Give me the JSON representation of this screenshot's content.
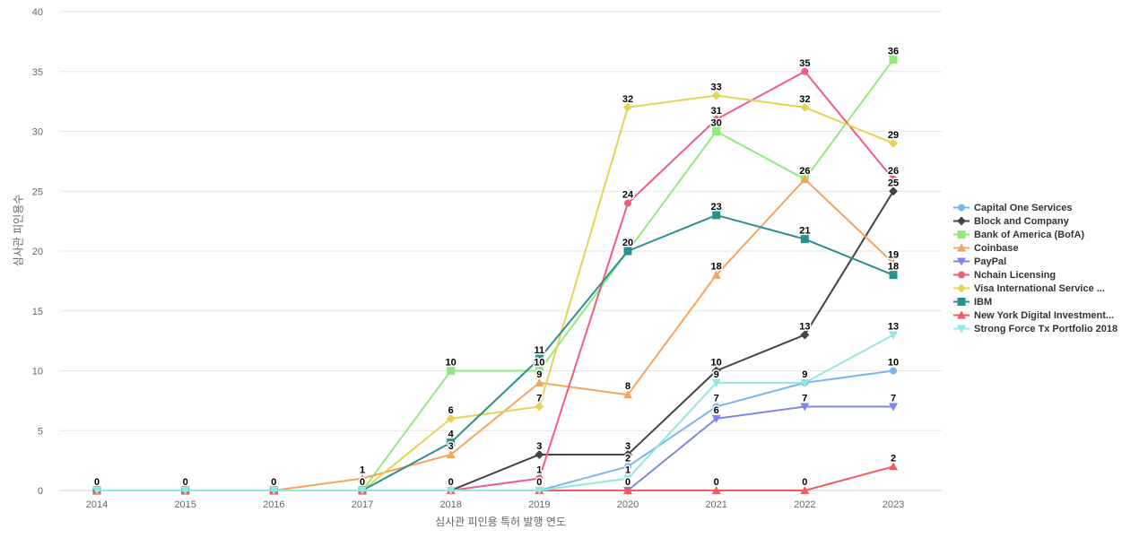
{
  "axes": {
    "y_title": "심사관 피인용수",
    "x_title": "심사관 피인용 특허 발행 연도"
  },
  "chart_data": {
    "type": "line",
    "title": "",
    "xlabel": "심사관 피인용 특허 발행 연도",
    "ylabel": "심사관 피인용수",
    "x": [
      2014,
      2015,
      2016,
      2017,
      2018,
      2019,
      2020,
      2021,
      2022,
      2023
    ],
    "ylim": [
      0,
      40
    ],
    "y_ticks": [
      0,
      5,
      10,
      15,
      20,
      25,
      30,
      35,
      40
    ],
    "grid": "horizontal",
    "legend_position": "right",
    "data_labels": true,
    "axis_line_color": "#ccd6eb",
    "grid_color": "#e6e6e6",
    "series": [
      {
        "name": "Capital One Services",
        "color": "#7cb5ec",
        "marker": "circle",
        "values": [
          0,
          0,
          0,
          0,
          0,
          0,
          2,
          7,
          9,
          10
        ]
      },
      {
        "name": "Block and Company",
        "color": "#434348",
        "marker": "diamond",
        "values": [
          0,
          0,
          0,
          0,
          0,
          3,
          3,
          10,
          13,
          25
        ]
      },
      {
        "name": "Bank of America (BofA)",
        "color": "#90ed7d",
        "marker": "square",
        "values": [
          0,
          0,
          0,
          0,
          10,
          10,
          20,
          30,
          26,
          36
        ]
      },
      {
        "name": "Coinbase",
        "color": "#f7a35c",
        "marker": "triangle",
        "values": [
          0,
          0,
          0,
          1,
          3,
          9,
          8,
          18,
          26,
          19
        ]
      },
      {
        "name": "PayPal",
        "color": "#8085e9",
        "marker": "triangle-down",
        "values": [
          0,
          0,
          0,
          0,
          0,
          0,
          0,
          6,
          7,
          7
        ]
      },
      {
        "name": "Nchain Licensing",
        "color": "#f15c80",
        "marker": "circle",
        "values": [
          0,
          0,
          0,
          0,
          0,
          1,
          24,
          31,
          35,
          26
        ]
      },
      {
        "name": "Visa International Service ...",
        "color": "#e4d354",
        "marker": "diamond",
        "values": [
          0,
          0,
          0,
          0,
          6,
          7,
          32,
          33,
          32,
          29
        ]
      },
      {
        "name": "IBM",
        "color": "#2b908f",
        "marker": "square",
        "values": [
          0,
          0,
          0,
          0,
          4,
          11,
          20,
          23,
          21,
          18
        ]
      },
      {
        "name": "New York Digital Investment...",
        "color": "#f45b5b",
        "marker": "triangle",
        "values": [
          0,
          0,
          0,
          0,
          0,
          0,
          0,
          0,
          0,
          2
        ]
      },
      {
        "name": "Strong Force Tx Portfolio 2018",
        "color": "#91e8e1",
        "marker": "triangle-down",
        "values": [
          0,
          0,
          0,
          0,
          0,
          0,
          1,
          9,
          9,
          13
        ]
      }
    ]
  }
}
